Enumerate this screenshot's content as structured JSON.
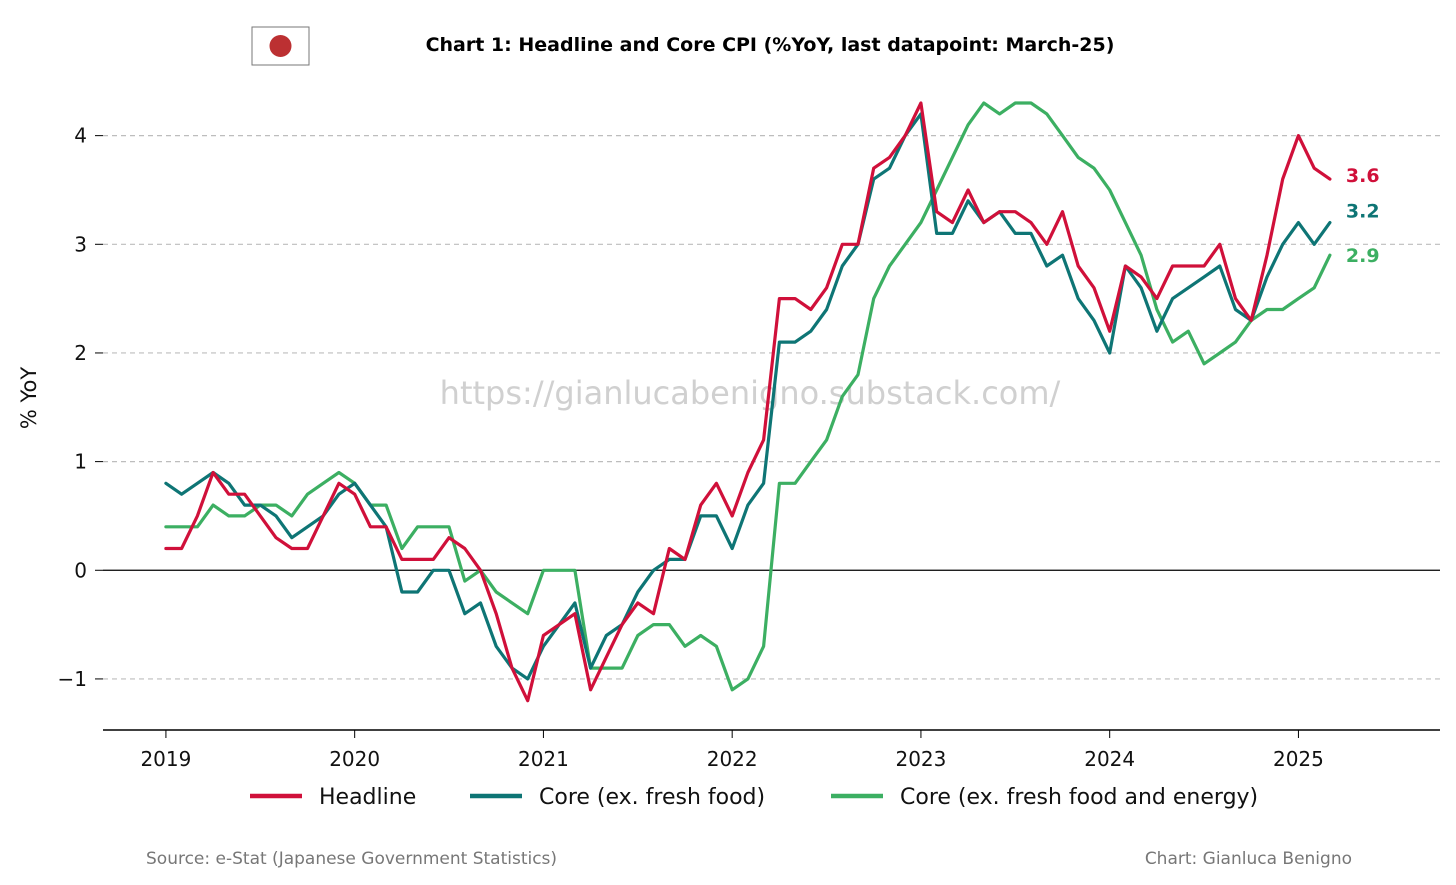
{
  "flag": {
    "icon": "japan-flag-icon",
    "colors": {
      "border": "#777777",
      "disc": "#bc3032"
    }
  },
  "chart_data": {
    "type": "line",
    "title": "Chart 1: Headline and Core CPI (%YoY, last datapoint: March-25)",
    "ylabel": "% YoY",
    "xlabel": "",
    "ylim": [
      -1.47,
      4.42
    ],
    "xlim": [
      "2018-09",
      "2025-10"
    ],
    "x_start": "2019-01",
    "x_end": "2025-03",
    "x_frequency": "monthly",
    "x_ticks": [
      "2019",
      "2020",
      "2021",
      "2022",
      "2023",
      "2024",
      "2025"
    ],
    "y_ticks": [
      -1,
      0,
      1,
      2,
      3,
      4
    ],
    "y_tick_labels": [
      "−1",
      "0",
      "1",
      "2",
      "3",
      "4"
    ],
    "grid": "horizontal dashed",
    "legend_position": "bottom",
    "watermark": "https://gianlucabenigno.substack.com/",
    "series": [
      {
        "name": "Headline",
        "color": "#d0103a",
        "end_label": "3.6",
        "values": [
          0.2,
          0.2,
          0.5,
          0.9,
          0.7,
          0.7,
          0.5,
          0.3,
          0.2,
          0.2,
          0.5,
          0.8,
          0.7,
          0.4,
          0.4,
          0.1,
          0.1,
          0.1,
          0.3,
          0.2,
          0.0,
          -0.4,
          -0.9,
          -1.2,
          -0.6,
          -0.5,
          -0.4,
          -1.1,
          -0.8,
          -0.5,
          -0.3,
          -0.4,
          0.2,
          0.1,
          0.6,
          0.8,
          0.5,
          0.9,
          1.2,
          2.5,
          2.5,
          2.4,
          2.6,
          3.0,
          3.0,
          3.7,
          3.8,
          4.0,
          4.3,
          3.3,
          3.2,
          3.5,
          3.2,
          3.3,
          3.3,
          3.2,
          3.0,
          3.3,
          2.8,
          2.6,
          2.2,
          2.8,
          2.7,
          2.5,
          2.8,
          2.8,
          2.8,
          3.0,
          2.5,
          2.3,
          2.9,
          3.6,
          4.0,
          3.7,
          3.6
        ]
      },
      {
        "name": "Core (ex. fresh food)",
        "color": "#0e7575",
        "end_label": "3.2",
        "values": [
          0.8,
          0.7,
          0.8,
          0.9,
          0.8,
          0.6,
          0.6,
          0.5,
          0.3,
          0.4,
          0.5,
          0.7,
          0.8,
          0.6,
          0.4,
          -0.2,
          -0.2,
          0.0,
          0.0,
          -0.4,
          -0.3,
          -0.7,
          -0.9,
          -1.0,
          -0.7,
          -0.5,
          -0.3,
          -0.9,
          -0.6,
          -0.5,
          -0.2,
          0.0,
          0.1,
          0.1,
          0.5,
          0.5,
          0.2,
          0.6,
          0.8,
          2.1,
          2.1,
          2.2,
          2.4,
          2.8,
          3.0,
          3.6,
          3.7,
          4.0,
          4.2,
          3.1,
          3.1,
          3.4,
          3.2,
          3.3,
          3.1,
          3.1,
          2.8,
          2.9,
          2.5,
          2.3,
          2.0,
          2.8,
          2.6,
          2.2,
          2.5,
          2.6,
          2.7,
          2.8,
          2.4,
          2.3,
          2.7,
          3.0,
          3.2,
          3.0,
          3.2
        ]
      },
      {
        "name": "Core (ex. fresh food and energy)",
        "color": "#3caf62",
        "end_label": "2.9",
        "values": [
          0.4,
          0.4,
          0.4,
          0.6,
          0.5,
          0.5,
          0.6,
          0.6,
          0.5,
          0.7,
          0.8,
          0.9,
          0.8,
          0.6,
          0.6,
          0.2,
          0.4,
          0.4,
          0.4,
          -0.1,
          0.0,
          -0.2,
          -0.3,
          -0.4,
          0.0,
          0.0,
          0.0,
          -0.9,
          -0.9,
          -0.9,
          -0.6,
          -0.5,
          -0.5,
          -0.7,
          -0.6,
          -0.7,
          -1.1,
          -1.0,
          -0.7,
          0.8,
          0.8,
          1.0,
          1.2,
          1.6,
          1.8,
          2.5,
          2.8,
          3.0,
          3.2,
          3.5,
          3.8,
          4.1,
          4.3,
          4.2,
          4.3,
          4.3,
          4.2,
          4.0,
          3.8,
          3.7,
          3.5,
          3.2,
          2.9,
          2.4,
          2.1,
          2.2,
          1.9,
          2.0,
          2.1,
          2.3,
          2.4,
          2.4,
          2.5,
          2.6,
          2.9
        ]
      }
    ]
  },
  "footer": {
    "source": "Source: e-Stat (Japanese Government Statistics)",
    "credit": "Chart: Gianluca Benigno"
  }
}
